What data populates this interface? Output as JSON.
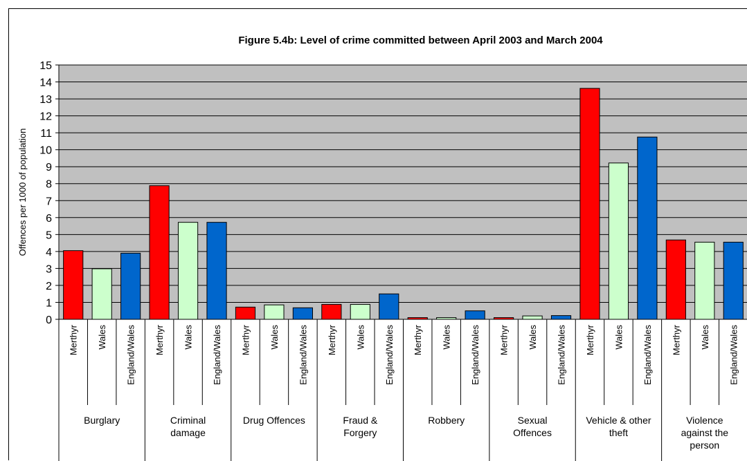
{
  "chart_data": {
    "type": "bar",
    "title": "Figure 5.4b:  Level of crime committed between April 2003 and March 2004",
    "ylabel": "Offences per 1000 of population",
    "xlabel": "",
    "ylim": [
      0,
      15
    ],
    "yticks": [
      "0",
      "1",
      "2",
      "3",
      "4",
      "5",
      "6",
      "7",
      "8",
      "9",
      "10",
      "11",
      "12",
      "13",
      "14",
      "15"
    ],
    "grid": true,
    "plot_background": "#c0c0c0",
    "sub_categories": [
      "Merthyr",
      "Wales",
      "England/Wales"
    ],
    "sub_colors": [
      "#ff0000",
      "#ccffcc",
      "#0066cc"
    ],
    "groups": [
      {
        "label_lines": [
          "Burglary"
        ],
        "values": [
          4.05,
          2.98,
          3.9
        ]
      },
      {
        "label_lines": [
          "Criminal",
          "damage"
        ],
        "values": [
          7.88,
          5.72,
          5.72
        ]
      },
      {
        "label_lines": [
          "Drug Offences"
        ],
        "values": [
          0.72,
          0.85,
          0.68
        ]
      },
      {
        "label_lines": [
          "Fraud &",
          "Forgery"
        ],
        "values": [
          0.88,
          0.88,
          1.5
        ]
      },
      {
        "label_lines": [
          "Robbery"
        ],
        "values": [
          0.1,
          0.1,
          0.5
        ]
      },
      {
        "label_lines": [
          "Sexual",
          "Offences"
        ],
        "values": [
          0.1,
          0.2,
          0.22
        ]
      },
      {
        "label_lines": [
          "Vehicle & other",
          "theft"
        ],
        "values": [
          13.62,
          9.22,
          10.75
        ]
      },
      {
        "label_lines": [
          "Violence",
          "against the",
          "person"
        ],
        "values": [
          4.68,
          4.55,
          4.55
        ]
      }
    ]
  }
}
